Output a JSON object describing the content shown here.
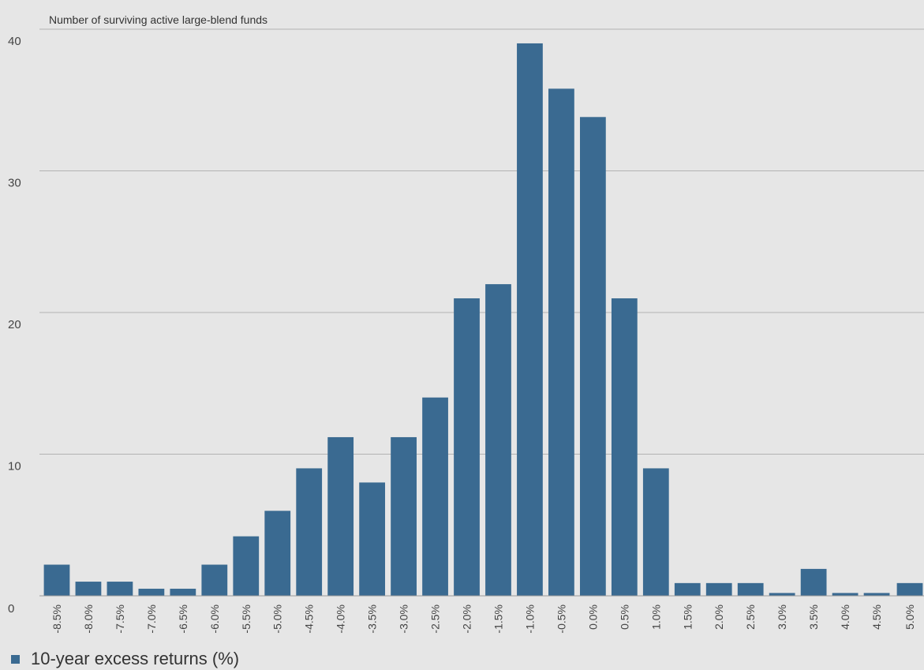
{
  "chart_data": {
    "type": "bar",
    "ylabel": "Number of surviving active large-blend funds",
    "categories": [
      "-8.5%",
      "-8.0%",
      "-7.5%",
      "-7.0%",
      "-6.5%",
      "-6.0%",
      "-5.5%",
      "-5.0%",
      "-4.5%",
      "-4.0%",
      "-3.5%",
      "-3.0%",
      "-2.5%",
      "-2.0%",
      "-1.5%",
      "-1.0%",
      "-0.5%",
      "0.0%",
      "0.5%",
      "1.0%",
      "1.5%",
      "2.0%",
      "2.5%",
      "3.0%",
      "3.5%",
      "4.0%",
      "4.5%",
      "5.0%"
    ],
    "series": [
      {
        "name": "10-year excess returns (%)",
        "values": [
          2.2,
          1.0,
          1.0,
          0.5,
          0.5,
          2.2,
          4.2,
          6.0,
          9.0,
          11.2,
          8.0,
          11.2,
          14.0,
          21.0,
          22.0,
          39.0,
          35.8,
          33.8,
          21.0,
          9.0,
          0.9,
          0.9,
          0.9,
          0.2,
          1.9,
          0.2,
          0.2,
          0.9
        ]
      }
    ],
    "ylim": [
      0,
      40
    ],
    "yticks": [
      0,
      10,
      20,
      30,
      40
    ],
    "grid": true,
    "legend_position": "bottom-left",
    "bar_color": "#3a6a91",
    "grid_color": "#b3b3b3",
    "background_color": "#e6e6e6"
  },
  "legend": {
    "label": "10-year excess returns (%)"
  }
}
